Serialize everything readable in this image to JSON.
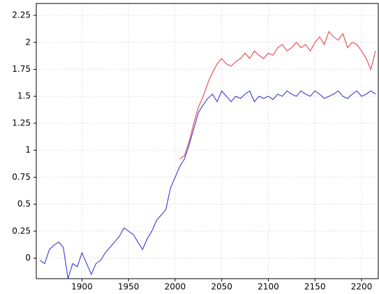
{
  "chart_data": {
    "type": "line",
    "x": [
      1855,
      1860,
      1865,
      1870,
      1875,
      1880,
      1885,
      1890,
      1895,
      1900,
      1905,
      1910,
      1915,
      1920,
      1925,
      1930,
      1935,
      1940,
      1945,
      1950,
      1955,
      1960,
      1965,
      1970,
      1975,
      1980,
      1985,
      1990,
      1995,
      2000,
      2005,
      2010,
      2015,
      2020,
      2025,
      2030,
      2035,
      2040,
      2045,
      2050,
      2055,
      2060,
      2065,
      2070,
      2075,
      2080,
      2085,
      2090,
      2095,
      2100,
      2105,
      2110,
      2115,
      2120,
      2125,
      2130,
      2135,
      2140,
      2145,
      2150,
      2155,
      2160,
      2165,
      2170,
      2175,
      2180,
      2185,
      2190,
      2195,
      2200,
      2205,
      2210,
      2215
    ],
    "series": [
      {
        "color": "#e8454a",
        "values": [
          null,
          null,
          null,
          null,
          null,
          null,
          null,
          null,
          null,
          null,
          null,
          null,
          null,
          null,
          null,
          null,
          null,
          null,
          null,
          null,
          null,
          null,
          null,
          null,
          null,
          null,
          null,
          null,
          null,
          null,
          0.92,
          0.95,
          1.08,
          1.25,
          1.4,
          1.5,
          1.62,
          1.72,
          1.8,
          1.85,
          1.8,
          1.78,
          1.82,
          1.85,
          1.9,
          1.85,
          1.92,
          1.88,
          1.85,
          1.9,
          1.88,
          1.95,
          1.98,
          1.92,
          1.95,
          2.0,
          1.95,
          1.98,
          1.92,
          2.0,
          2.05,
          1.98,
          2.1,
          2.05,
          2.02,
          2.08,
          1.95,
          2.0,
          1.98,
          1.92,
          1.85,
          1.75,
          1.92
        ]
      },
      {
        "color": "#3a3ad8",
        "values": [
          -0.02,
          -0.05,
          0.08,
          0.12,
          0.15,
          0.1,
          -0.19,
          -0.05,
          -0.08,
          0.05,
          -0.05,
          -0.15,
          -0.05,
          -0.02,
          0.05,
          0.1,
          0.15,
          0.2,
          0.28,
          0.25,
          0.22,
          0.15,
          0.08,
          0.18,
          0.25,
          0.35,
          0.4,
          0.45,
          0.65,
          0.75,
          0.85,
          0.92,
          1.05,
          1.2,
          1.35,
          1.42,
          1.48,
          1.52,
          1.45,
          1.55,
          1.5,
          1.45,
          1.5,
          1.48,
          1.52,
          1.55,
          1.45,
          1.5,
          1.48,
          1.5,
          1.47,
          1.52,
          1.5,
          1.55,
          1.52,
          1.5,
          1.55,
          1.52,
          1.5,
          1.55,
          1.52,
          1.48,
          1.5,
          1.52,
          1.55,
          1.5,
          1.48,
          1.52,
          1.55,
          1.5,
          1.52,
          1.55,
          1.52
        ]
      }
    ],
    "xlim": [
      1851,
      2218
    ],
    "ylim": [
      -0.19,
      2.36
    ],
    "xticks": [
      1900,
      1950,
      2000,
      2050,
      2100,
      2150,
      2200
    ],
    "yticks": [
      0,
      0.25,
      0.5,
      0.75,
      1,
      1.25,
      1.5,
      1.75,
      2,
      2.25
    ],
    "grid": true
  }
}
